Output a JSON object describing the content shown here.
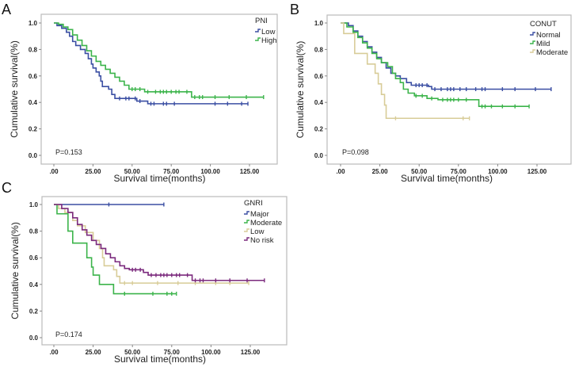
{
  "chart_data": [
    {
      "panel": "A",
      "type": "line",
      "step": true,
      "xlabel": "Survival time(months)",
      "ylabel": "Cumulative survival(%)",
      "xticks": [
        ".00",
        "25.00",
        "50.00",
        "75.00",
        "100.00",
        "125.00"
      ],
      "yticks": [
        "0.0",
        "0.2",
        "0.4",
        "0.6",
        "0.8",
        "1.0"
      ],
      "xlim": [
        0,
        140
      ],
      "ylim": [
        0,
        1
      ],
      "legend_title": "PNI",
      "legend_position": "top-right",
      "annotation": "P=0.153",
      "series": [
        {
          "name": "Low",
          "color": "#3b4fa3",
          "points": [
            [
              0,
              1
            ],
            [
              2,
              0.98
            ],
            [
              5,
              0.96
            ],
            [
              8,
              0.93
            ],
            [
              10,
              0.9
            ],
            [
              12,
              0.86
            ],
            [
              14,
              0.83
            ],
            [
              17,
              0.8
            ],
            [
              20,
              0.77
            ],
            [
              22,
              0.73
            ],
            [
              24,
              0.69
            ],
            [
              25,
              0.66
            ],
            [
              27,
              0.63
            ],
            [
              29,
              0.6
            ],
            [
              30,
              0.56
            ],
            [
              31,
              0.52
            ],
            [
              35,
              0.5
            ],
            [
              37,
              0.46
            ],
            [
              39,
              0.43
            ],
            [
              53,
              0.41
            ],
            [
              60,
              0.39
            ],
            [
              124,
              0.39
            ]
          ],
          "censored": [
            42,
            46,
            48,
            52,
            55,
            62,
            64,
            70,
            72,
            77,
            103,
            111,
            120,
            124
          ]
        },
        {
          "name": "High",
          "color": "#3cb44b",
          "points": [
            [
              0,
              1
            ],
            [
              3,
              0.99
            ],
            [
              6,
              0.97
            ],
            [
              9,
              0.95
            ],
            [
              12,
              0.91
            ],
            [
              15,
              0.87
            ],
            [
              18,
              0.83
            ],
            [
              21,
              0.79
            ],
            [
              24,
              0.75
            ],
            [
              27,
              0.71
            ],
            [
              30,
              0.68
            ],
            [
              33,
              0.65
            ],
            [
              36,
              0.62
            ],
            [
              39,
              0.59
            ],
            [
              42,
              0.56
            ],
            [
              45,
              0.53
            ],
            [
              48,
              0.5
            ],
            [
              58,
              0.48
            ],
            [
              88,
              0.44
            ],
            [
              134,
              0.44
            ]
          ],
          "censored": [
            50,
            52,
            55,
            60,
            65,
            68,
            70,
            72,
            75,
            78,
            80,
            85,
            90,
            93,
            95,
            103,
            112,
            123,
            134
          ]
        }
      ]
    },
    {
      "panel": "B",
      "type": "line",
      "step": true,
      "xlabel": "Survival time(months)",
      "ylabel": "Cumulative survival(%)",
      "xticks": [
        ".00",
        "25.00",
        "50.00",
        "75.00",
        "100.00",
        "125.00"
      ],
      "yticks": [
        "0.0",
        "0.2",
        "0.4",
        "0.6",
        "0.8",
        "1.0"
      ],
      "xlim": [
        0,
        140
      ],
      "ylim": [
        0,
        1
      ],
      "legend_title": "CONUT",
      "legend_position": "top-right",
      "annotation": "P=0.098",
      "series": [
        {
          "name": "Normal",
          "color": "#3b4fa3",
          "points": [
            [
              0,
              1
            ],
            [
              5,
              0.98
            ],
            [
              8,
              0.94
            ],
            [
              11,
              0.9
            ],
            [
              14,
              0.86
            ],
            [
              17,
              0.82
            ],
            [
              20,
              0.78
            ],
            [
              23,
              0.74
            ],
            [
              26,
              0.7
            ],
            [
              29,
              0.66
            ],
            [
              32,
              0.62
            ],
            [
              35,
              0.6
            ],
            [
              38,
              0.58
            ],
            [
              42,
              0.55
            ],
            [
              45,
              0.53
            ],
            [
              56,
              0.52
            ],
            [
              58,
              0.5
            ],
            [
              134,
              0.5
            ]
          ],
          "censored": [
            48,
            50,
            52,
            55,
            60,
            64,
            68,
            70,
            72,
            76,
            80,
            86,
            90,
            92,
            103,
            111,
            124,
            134
          ]
        },
        {
          "name": "Mild",
          "color": "#3cb44b",
          "points": [
            [
              0,
              1
            ],
            [
              4,
              0.97
            ],
            [
              8,
              0.93
            ],
            [
              11,
              0.89
            ],
            [
              14,
              0.85
            ],
            [
              17,
              0.81
            ],
            [
              20,
              0.77
            ],
            [
              23,
              0.73
            ],
            [
              26,
              0.7
            ],
            [
              30,
              0.67
            ],
            [
              33,
              0.62
            ],
            [
              35,
              0.58
            ],
            [
              38,
              0.55
            ],
            [
              40,
              0.5
            ],
            [
              43,
              0.47
            ],
            [
              47,
              0.45
            ],
            [
              55,
              0.43
            ],
            [
              62,
              0.42
            ],
            [
              88,
              0.37
            ],
            [
              120,
              0.37
            ]
          ],
          "censored": [
            48,
            52,
            58,
            65,
            68,
            70,
            72,
            75,
            80,
            90,
            92,
            96,
            103,
            111,
            120
          ]
        },
        {
          "name": "Moderate",
          "color": "#d8cc98",
          "points": [
            [
              0,
              1
            ],
            [
              2,
              0.92
            ],
            [
              9,
              0.77
            ],
            [
              17,
              0.69
            ],
            [
              22,
              0.62
            ],
            [
              24,
              0.54
            ],
            [
              26,
              0.46
            ],
            [
              28,
              0.38
            ],
            [
              29,
              0.28
            ],
            [
              82,
              0.28
            ]
          ],
          "censored": [
            35,
            78,
            82
          ]
        }
      ]
    },
    {
      "panel": "C",
      "type": "line",
      "step": true,
      "xlabel": "Survival time(months)",
      "ylabel": "Cumulative survival(%)",
      "xticks": [
        ".00",
        "25.00",
        "50.00",
        "75.00",
        "100.00",
        "125.00"
      ],
      "yticks": [
        "0.0",
        "0.2",
        "0.4",
        "0.6",
        "0.8",
        "1.0"
      ],
      "xlim": [
        0,
        140
      ],
      "ylim": [
        0,
        1
      ],
      "legend_title": "GNRI",
      "legend_position": "top-right",
      "annotation": "P=0.174",
      "series": [
        {
          "name": "Major",
          "color": "#3b4fa3",
          "points": [
            [
              0,
              1
            ],
            [
              70,
              1
            ]
          ],
          "censored": [
            35,
            70
          ]
        },
        {
          "name": "Moderate",
          "color": "#3cb44b",
          "points": [
            [
              0,
              1
            ],
            [
              2,
              0.93
            ],
            [
              9,
              0.8
            ],
            [
              12,
              0.71
            ],
            [
              21,
              0.6
            ],
            [
              24,
              0.53
            ],
            [
              25,
              0.47
            ],
            [
              29,
              0.4
            ],
            [
              38,
              0.33
            ],
            [
              78,
              0.33
            ]
          ],
          "censored": [
            45,
            63,
            72,
            75,
            78
          ]
        },
        {
          "name": "Low",
          "color": "#d8cc98",
          "points": [
            [
              0,
              1
            ],
            [
              3,
              0.97
            ],
            [
              7,
              0.94
            ],
            [
              12,
              0.88
            ],
            [
              15,
              0.84
            ],
            [
              20,
              0.79
            ],
            [
              25,
              0.73
            ],
            [
              29,
              0.67
            ],
            [
              31,
              0.6
            ],
            [
              32,
              0.54
            ],
            [
              38,
              0.51
            ],
            [
              40,
              0.46
            ],
            [
              42,
              0.41
            ],
            [
              124,
              0.41
            ]
          ],
          "censored": [
            45,
            50,
            66,
            79,
            90,
            103,
            112,
            124
          ]
        },
        {
          "name": "No risk",
          "color": "#7b2a7d",
          "points": [
            [
              0,
              1
            ],
            [
              5,
              0.97
            ],
            [
              9,
              0.94
            ],
            [
              12,
              0.9
            ],
            [
              15,
              0.85
            ],
            [
              18,
              0.81
            ],
            [
              21,
              0.77
            ],
            [
              24,
              0.73
            ],
            [
              27,
              0.7
            ],
            [
              30,
              0.67
            ],
            [
              33,
              0.63
            ],
            [
              36,
              0.6
            ],
            [
              39,
              0.57
            ],
            [
              42,
              0.54
            ],
            [
              45,
              0.52
            ],
            [
              48,
              0.51
            ],
            [
              57,
              0.49
            ],
            [
              60,
              0.47
            ],
            [
              88,
              0.43
            ],
            [
              134,
              0.43
            ]
          ],
          "censored": [
            50,
            52,
            55,
            62,
            65,
            68,
            70,
            72,
            75,
            78,
            80,
            85,
            90,
            93,
            95,
            103,
            112,
            123,
            134
          ]
        }
      ]
    }
  ]
}
